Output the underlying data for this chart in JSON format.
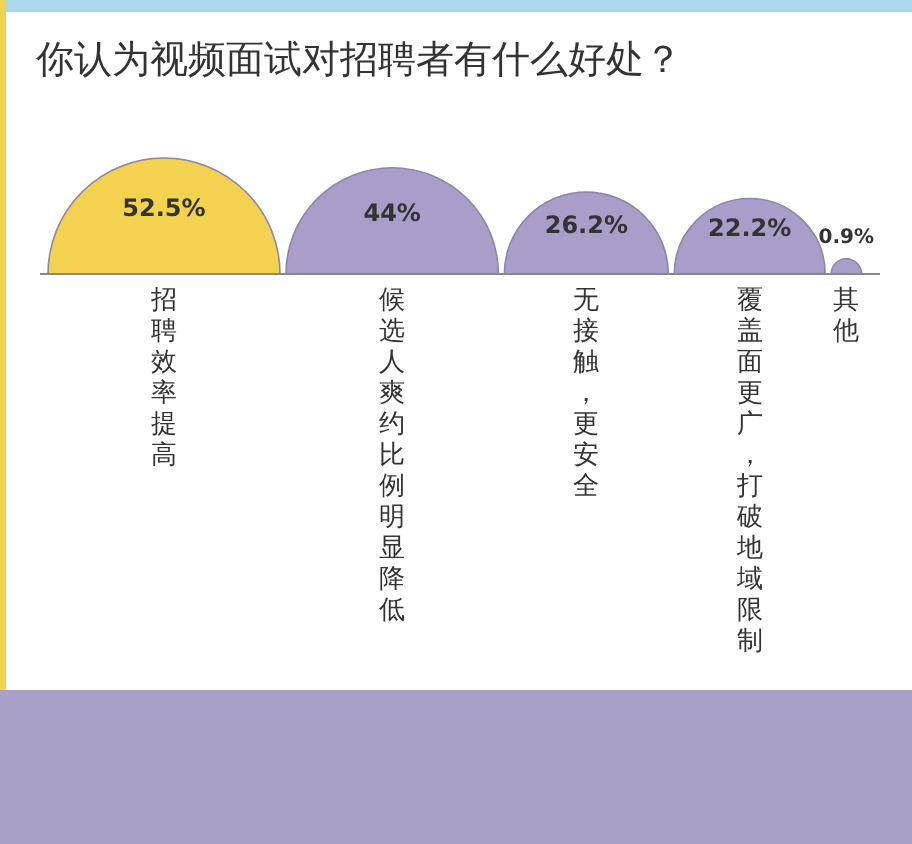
{
  "chart_data": {
    "type": "other",
    "title": "你认为视频面试对招聘者有什么好处？",
    "categories": [
      "招聘效率提高",
      "候选人爽约比例明显降低",
      "无接触，更安全",
      "覆盖面更广，打破地域限制",
      "其他"
    ],
    "values": [
      52.5,
      44,
      26.2,
      22.2,
      0.9
    ],
    "value_labels": [
      "52.5%",
      "44%",
      "26.2%",
      "22.2%",
      "0.9%"
    ],
    "colors": [
      "#f2d24e",
      "#a99ec9",
      "#a99ec9",
      "#a99ec9",
      "#a99ec9"
    ]
  }
}
